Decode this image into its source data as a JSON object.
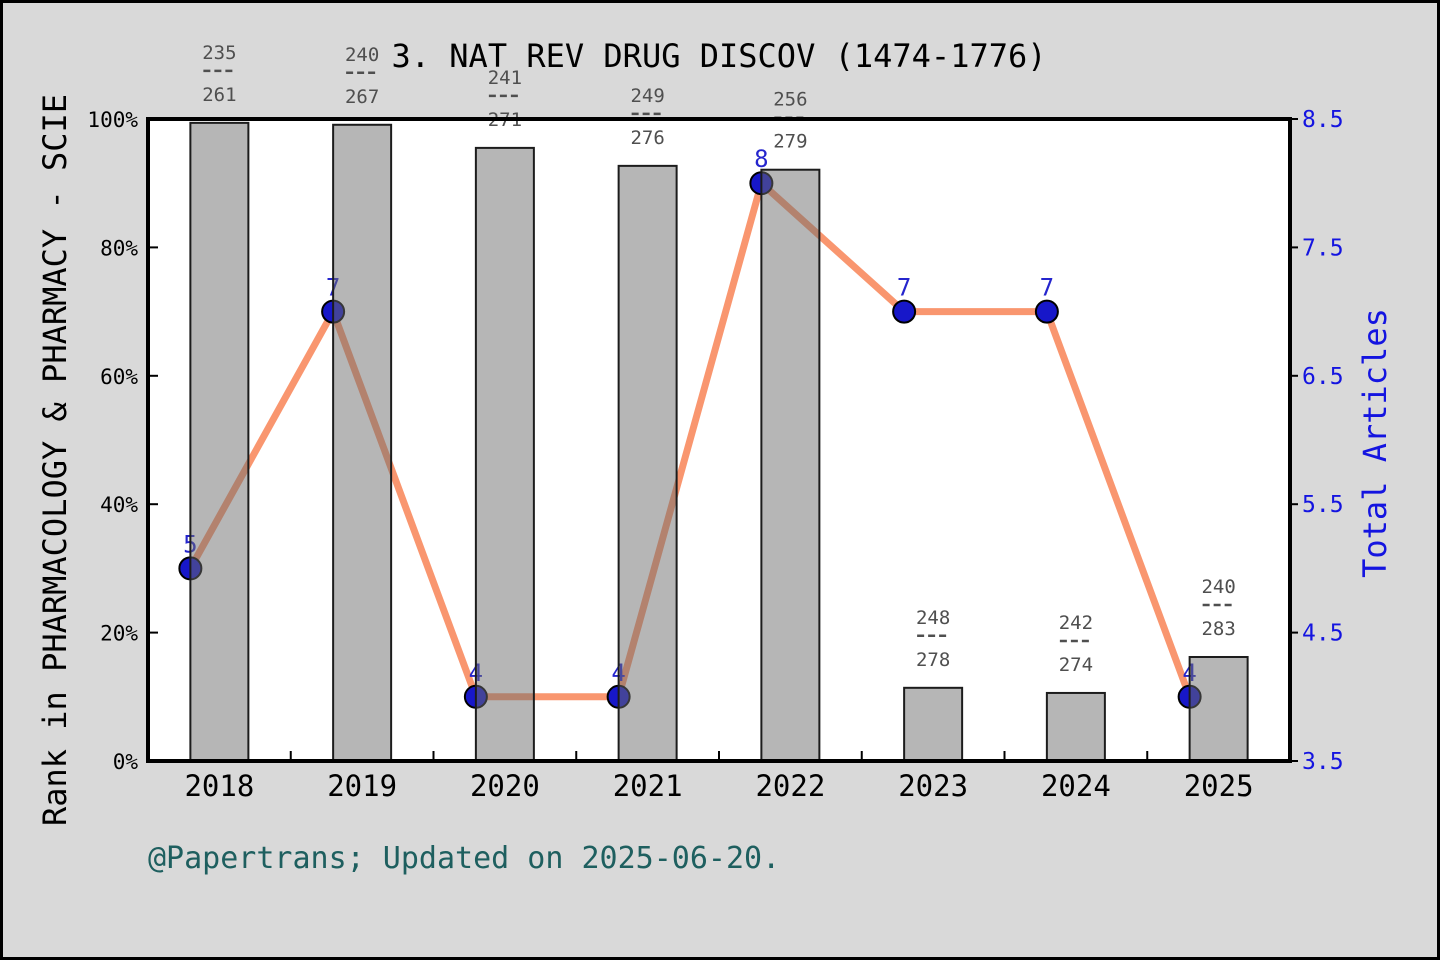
{
  "title": "3. NAT REV DRUG DISCOV (1474-1776)",
  "footer": "@Papertrans; Updated on 2025-06-20.",
  "colors": {
    "background": "#d9d9d9",
    "plot_bg": "#ffffff",
    "frame": "#000000",
    "bar_fill": "#6d6d6d",
    "bar_edge": "#1c1c1c",
    "line": "#f9966f",
    "marker_fill": "#1717c9",
    "marker_edge": "#000000",
    "marker_label": "#2525cd",
    "right_axis_blue": "#1414e0",
    "left_axis_black": "#000000",
    "fraction_gray": "#4f4f4f",
    "footer_teal": "#1e5f5f"
  },
  "chart_data": {
    "type": "bar",
    "subtype": "bar+line dual-axis combo",
    "title": "3. NAT REV DRUG DISCOV (1474-1776)",
    "categories": [
      "2018",
      "2019",
      "2020",
      "2021",
      "2022",
      "2023",
      "2024",
      "2025"
    ],
    "series": [
      {
        "name": "rank-percentile-bars",
        "type": "bar",
        "axis": "left",
        "unit": "%",
        "values": [
          99.4,
          99.1,
          95.5,
          92.7,
          92.1,
          11.4,
          10.6,
          16.2
        ]
      },
      {
        "name": "total-articles-line",
        "type": "line",
        "axis": "right",
        "values": [
          5,
          7,
          4,
          4,
          8,
          7,
          7,
          4
        ]
      }
    ],
    "bar_fraction_labels": [
      {
        "numerator": "235",
        "denominator": "261"
      },
      {
        "numerator": "240",
        "denominator": "267"
      },
      {
        "numerator": "241",
        "denominator": "271"
      },
      {
        "numerator": "249",
        "denominator": "276"
      },
      {
        "numerator": "256",
        "denominator": "279"
      },
      {
        "numerator": "248",
        "denominator": "278"
      },
      {
        "numerator": "242",
        "denominator": "274"
      },
      {
        "numerator": "240",
        "denominator": "283"
      }
    ],
    "left_axis": {
      "label": "Rank in PHARMACOLOGY & PHARMACY - SCIE",
      "ticks": [
        "0%",
        "20%",
        "40%",
        "60%",
        "80%",
        "100%"
      ],
      "range": [
        0,
        100
      ]
    },
    "right_axis": {
      "label": "Total Articles",
      "ticks": [
        "3.5",
        "4.5",
        "5.5",
        "6.5",
        "7.5",
        "8.5"
      ],
      "range": [
        3.5,
        8.5
      ]
    },
    "grid": "off",
    "legend": "none"
  }
}
